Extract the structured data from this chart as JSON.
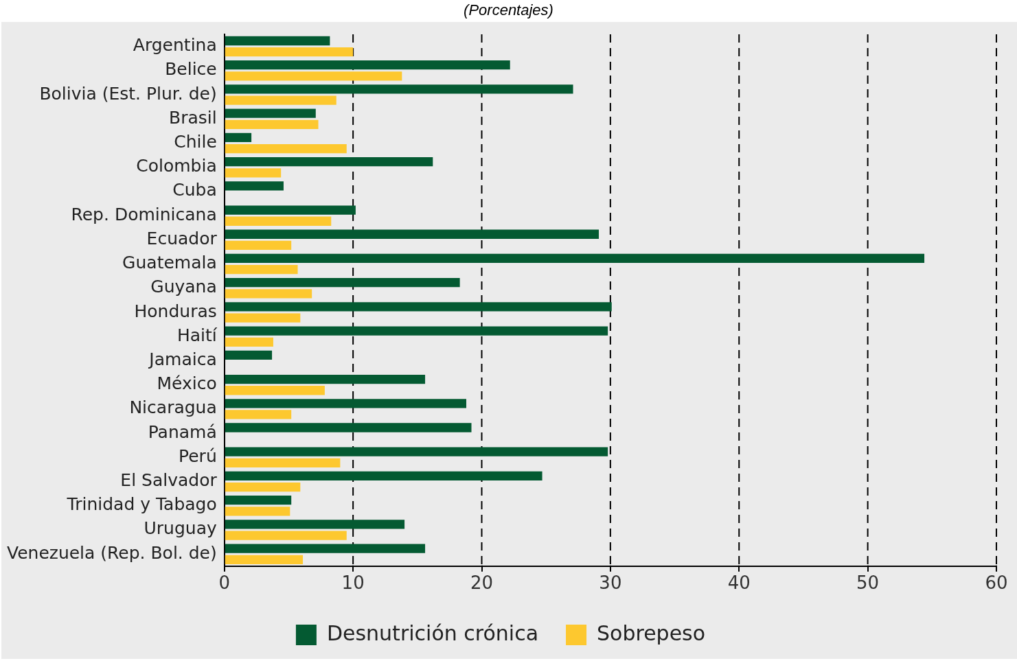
{
  "chart_data": {
    "type": "bar",
    "orientation": "horizontal",
    "title": "(Porcentajes)",
    "categories": [
      "Argentina",
      "Belice",
      "Bolivia (Est. Plur. de)",
      "Brasil",
      "Chile",
      "Colombia",
      "Cuba",
      "Rep. Dominicana",
      "Ecuador",
      "Guatemala",
      "Guyana",
      "Honduras",
      "Haití",
      "Jamaica",
      "México",
      "Nicaragua",
      "Panamá",
      "Perú",
      "El Salvador",
      "Trinidad y Tabago",
      "Uruguay",
      "Venezuela (Rep. Bol. de)"
    ],
    "series": [
      {
        "name": "Desnutrición crónica",
        "color": "#045a32",
        "values": [
          8.2,
          22.2,
          27.1,
          7.1,
          2.1,
          16.2,
          4.6,
          10.2,
          29.1,
          54.4,
          18.3,
          30.1,
          29.8,
          3.7,
          15.6,
          18.8,
          19.2,
          29.8,
          24.7,
          5.2,
          14.0,
          15.6
        ]
      },
      {
        "name": "Sobrepeso",
        "color": "#fdc82f",
        "values": [
          10.0,
          13.8,
          8.7,
          7.3,
          9.5,
          4.4,
          null,
          8.3,
          5.2,
          5.7,
          6.8,
          5.9,
          3.8,
          null,
          7.8,
          5.2,
          null,
          9.0,
          5.9,
          5.1,
          9.5,
          6.1
        ]
      }
    ],
    "xlim": [
      0,
      60
    ],
    "xticks": [
      0,
      10,
      20,
      30,
      40,
      50,
      60
    ],
    "grid": "x",
    "legend": "bottom"
  }
}
